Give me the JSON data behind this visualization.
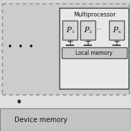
{
  "bg_color": "#d4d4d4",
  "outer_box_fill": "#cccccc",
  "mp_box_fill": "#e8e8e8",
  "proc_box_fill": "#d8d8d8",
  "local_mem_fill": "#c8c8c8",
  "device_mem_fill": "#c4c4c4",
  "white_strip_fill": "#e0e0e0",
  "border_color": "#555555",
  "dashed_color": "#888888",
  "arrow_color": "#333333",
  "text_color": "#111111",
  "title": "Multiprocessor",
  "local_memory_label": "Local memory",
  "device_memory_label": "Device memory",
  "figsize": [
    1.91,
    1.91
  ],
  "dpi": 100
}
